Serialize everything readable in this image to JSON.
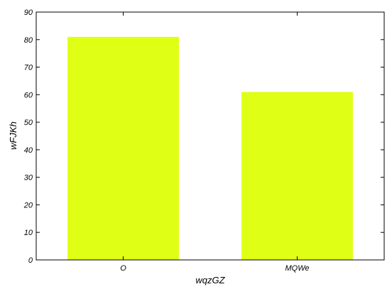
{
  "chart_data": {
    "type": "bar",
    "categories": [
      "O",
      "MQWe"
    ],
    "values": [
      81,
      61
    ],
    "title": "",
    "xlabel": "wqzGZ",
    "ylabel": "wFJKh",
    "ylim": [
      0,
      90
    ],
    "yticks": [
      0,
      10,
      20,
      30,
      40,
      50,
      60,
      70,
      80,
      90
    ],
    "grid": false,
    "legend": "none",
    "colors": {
      "bar": "#dfff14",
      "axis": "#000000",
      "background": "#ffffff"
    }
  }
}
